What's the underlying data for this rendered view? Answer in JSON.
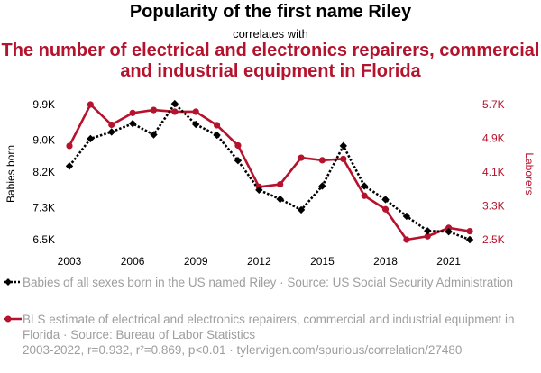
{
  "header": {
    "title": "Popularity of the first name Riley",
    "connector": "correlates with",
    "subtitle": "The number of electrical and electronics repairers, commercial and industrial equipment in Florida"
  },
  "legend": {
    "series1": "Babies of all sexes born in the US named Riley · Source: US Social Security Administration",
    "series2": "BLS estimate of electrical and electronics repairers, commercial and industrial equipment in Florida · Source: Bureau of Labor Statistics"
  },
  "footer": "2003-2022, r=0.932, r²=0.869, p<0.01 · tylervigen.com/spurious/correlation/27480",
  "colors": {
    "series1": "#000000",
    "series2": "#b5132d",
    "axis_left": "#000000",
    "axis_right": "#b5132d"
  },
  "chart_data": {
    "type": "line",
    "x": [
      2003,
      2004,
      2005,
      2006,
      2007,
      2008,
      2009,
      2010,
      2011,
      2012,
      2013,
      2014,
      2015,
      2016,
      2017,
      2018,
      2019,
      2020,
      2021,
      2022
    ],
    "x_ticks": [
      2003,
      2006,
      2009,
      2012,
      2015,
      2018,
      2021
    ],
    "xlim": [
      2003,
      2022
    ],
    "ylabel_left": "Babies born",
    "ylabel_right": "Laborers",
    "ylim_left": [
      6500,
      9900
    ],
    "ylim_right": [
      2500,
      5700
    ],
    "yticks_left": [
      {
        "value": 6500,
        "label": "6.5K"
      },
      {
        "value": 7300,
        "label": "7.3K"
      },
      {
        "value": 8200,
        "label": "8.2K"
      },
      {
        "value": 9000,
        "label": "9.0K"
      },
      {
        "value": 9900,
        "label": "9.9K"
      }
    ],
    "yticks_right": [
      {
        "value": 2500,
        "label": "2.5K"
      },
      {
        "value": 3300,
        "label": "3.3K"
      },
      {
        "value": 4100,
        "label": "4.1K"
      },
      {
        "value": 4900,
        "label": "4.9K"
      },
      {
        "value": 5700,
        "label": "5.7K"
      }
    ],
    "grid": false,
    "series": [
      {
        "axis": "left",
        "style": "dotted",
        "marker": "diamond",
        "values": [
          8350,
          9040,
          9210,
          9420,
          9140,
          9920,
          9400,
          9130,
          8490,
          7750,
          7520,
          7250,
          7850,
          8860,
          7850,
          7510,
          7090,
          6720,
          6700,
          6500
        ]
      },
      {
        "axis": "right",
        "style": "solid",
        "marker": "circle",
        "values": [
          4720,
          5700,
          5220,
          5500,
          5570,
          5530,
          5530,
          5210,
          4730,
          3750,
          3810,
          4440,
          4380,
          4410,
          3540,
          3220,
          2500,
          2580,
          2780,
          2700
        ]
      }
    ]
  }
}
